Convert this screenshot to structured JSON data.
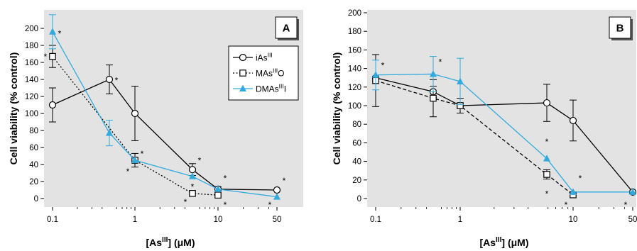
{
  "chart_data": [
    {
      "type": "line",
      "panel": "A",
      "xscale": "log",
      "x": [
        0.1,
        0.5,
        1,
        5,
        10,
        50
      ],
      "xticks": [
        "0.1",
        "1",
        "10",
        "50"
      ],
      "ylim": [
        0,
        200
      ],
      "yticks": [
        "0",
        "20",
        "40",
        "60",
        "80",
        "100",
        "120",
        "140",
        "160",
        "180",
        "200"
      ],
      "ylabel": "Cell viability (% control)",
      "xlabel": {
        "pre": "[As",
        "sup": "III",
        "post": "] (μM)"
      },
      "legend_position": "top-right",
      "series": [
        {
          "name": "iAs",
          "sup": "III",
          "suffix": "",
          "marker": "circle",
          "color": "#000000",
          "dash": "solid",
          "x": [
            0.1,
            0.5,
            1,
            5,
            10,
            50
          ],
          "values": [
            110,
            140,
            100,
            34,
            11,
            10
          ],
          "err": [
            20,
            17,
            32,
            7,
            3,
            0
          ]
        },
        {
          "name": "MAs",
          "sup": "III",
          "suffix": "O",
          "marker": "square",
          "color": "#000000",
          "dash": "dotted",
          "x": [
            0.1,
            1,
            5,
            10
          ],
          "values": [
            167,
            45,
            6,
            4
          ],
          "err": [
            13,
            8,
            0,
            0
          ]
        },
        {
          "name": "DMAs",
          "sup": "III",
          "suffix": "I",
          "marker": "triangle",
          "color": "#33aadd",
          "dash": "solid",
          "x": [
            0.1,
            0.5,
            1,
            5,
            10,
            50
          ],
          "values": [
            196,
            77,
            45,
            26,
            11,
            2
          ],
          "err": [
            20,
            15,
            0,
            0,
            0,
            0
          ]
        }
      ],
      "asterisks": [
        {
          "x": 0.1,
          "y": 170,
          "side": "left"
        },
        {
          "x": 0.1,
          "y": 197,
          "side": "right"
        },
        {
          "x": 0.5,
          "y": 142,
          "side": "right"
        },
        {
          "x": 1,
          "y": 56,
          "side": "right"
        },
        {
          "x": 1,
          "y": 35,
          "side": "left"
        },
        {
          "x": 5,
          "y": 48,
          "side": "right"
        },
        {
          "x": 5,
          "y": 17,
          "side": "center"
        },
        {
          "x": 5,
          "y": -1,
          "side": "left"
        },
        {
          "x": 10,
          "y": 27,
          "side": "right"
        },
        {
          "x": 10,
          "y": -4,
          "side": "right"
        },
        {
          "x": 50,
          "y": 24,
          "side": "right"
        },
        {
          "x": 50,
          "y": -4,
          "side": "left"
        }
      ]
    },
    {
      "type": "line",
      "panel": "B",
      "xscale": "log",
      "x": [
        0.1,
        0.5,
        1,
        5,
        10,
        50
      ],
      "xticks": [
        "0.1",
        "1",
        "10",
        "50"
      ],
      "ylim": [
        0,
        200
      ],
      "yticks": [
        "0",
        "20",
        "40",
        "60",
        "80",
        "100",
        "120",
        "140",
        "160",
        "180",
        "200"
      ],
      "ylabel": "Cell viability (% control)",
      "xlabel": {
        "pre": "[As",
        "sup": "III",
        "post": "] (μM)"
      },
      "series": [
        {
          "name": "iAs",
          "sup": "III",
          "suffix": "",
          "marker": "circle",
          "color": "#000000",
          "dash": "solid",
          "x": [
            0.1,
            0.5,
            1,
            5,
            10,
            50
          ],
          "values": [
            130,
            115,
            100,
            103,
            84,
            7
          ],
          "err": [
            0,
            6,
            0,
            20,
            22,
            0
          ]
        },
        {
          "name": "MAs",
          "sup": "III",
          "suffix": "O",
          "marker": "square",
          "color": "#000000",
          "dash": "dashed",
          "x": [
            0.1,
            0.5,
            1,
            5,
            10
          ],
          "values": [
            127,
            108,
            100,
            26,
            4
          ],
          "err": [
            28,
            20,
            8,
            5,
            0
          ]
        },
        {
          "name": "DMAs",
          "sup": "III",
          "suffix": "I",
          "marker": "triangle",
          "color": "#33aadd",
          "dash": "solid",
          "x": [
            0.1,
            0.5,
            1,
            5,
            10,
            50
          ],
          "values": [
            133,
            134,
            126,
            43,
            7,
            7
          ],
          "err": [
            16,
            19,
            25,
            0,
            0,
            0
          ]
        }
      ],
      "asterisks": [
        {
          "x": 0.1,
          "y": 146,
          "side": "right"
        },
        {
          "x": 0.5,
          "y": 150,
          "side": "right"
        },
        {
          "x": 5,
          "y": 64,
          "side": "center"
        },
        {
          "x": 5,
          "y": 8,
          "side": "center"
        },
        {
          "x": 10,
          "y": 25,
          "side": "right"
        },
        {
          "x": 10,
          "y": -4,
          "side": "left"
        },
        {
          "x": 50,
          "y": 25,
          "side": "right"
        },
        {
          "x": 50,
          "y": -4,
          "side": "left"
        }
      ]
    }
  ]
}
